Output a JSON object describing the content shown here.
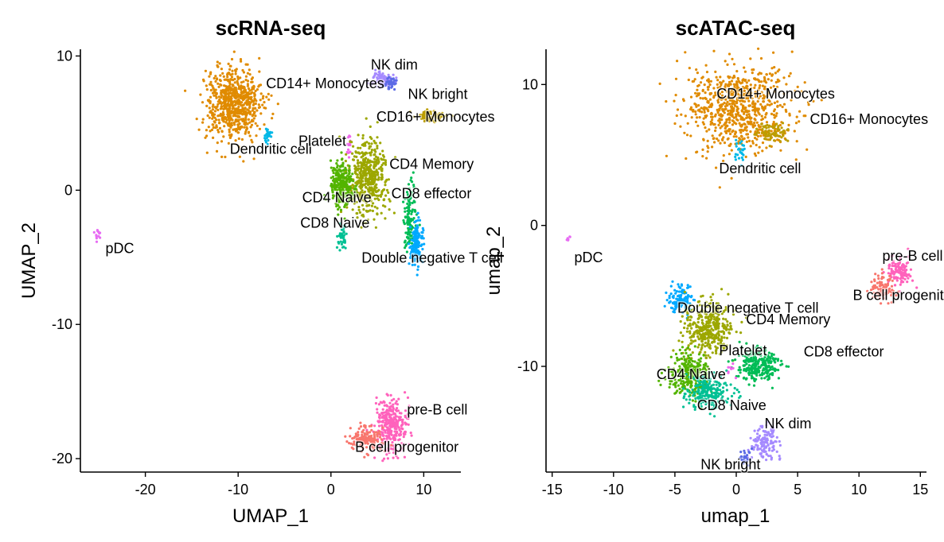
{
  "chart_data": [
    {
      "type": "scatter",
      "title": "scRNA-seq",
      "xlabel": "UMAP_1",
      "ylabel": "UMAP_2",
      "xlim": [
        -27,
        14
      ],
      "ylim": [
        -21,
        10.5
      ],
      "xticks": [
        -20,
        -10,
        0,
        10
      ],
      "yticks": [
        -20,
        -10,
        0,
        10
      ],
      "clusters": [
        {
          "name": "CD14+ Monocytes",
          "color": "#E08B00",
          "x": -10.5,
          "y": 6.5,
          "sx": 1.5,
          "sy": 1.3,
          "n": 700,
          "lx": -7,
          "ly": 7.6
        },
        {
          "name": "Dendritic cell",
          "color": "#00B8E7",
          "x": -6.8,
          "y": 4.0,
          "sx": 0.15,
          "sy": 0.35,
          "n": 25,
          "lx": -10.9,
          "ly": 2.7
        },
        {
          "name": "NK dim",
          "color": "#A58AFF",
          "x": 5.6,
          "y": 8.2,
          "sx": 0.6,
          "sy": 0.3,
          "n": 90,
          "lx": 4.3,
          "ly": 9.0
        },
        {
          "name": "NK bright",
          "color": "#5B6BE5",
          "x": 6.4,
          "y": 8.0,
          "sx": 0.3,
          "sy": 0.25,
          "n": 40,
          "lx": 8.3,
          "ly": 6.8
        },
        {
          "name": "CD16+ Monocytes",
          "color": "#BB9D00",
          "x": 10.8,
          "y": 5.5,
          "sx": 0.8,
          "sy": 0.25,
          "n": 70,
          "lx": 4.9,
          "ly": 5.1
        },
        {
          "name": "Platelet",
          "color": "#EF67EB",
          "x": 1.9,
          "y": 3.3,
          "sx": 0.1,
          "sy": 0.45,
          "n": 15,
          "lx": -3.5,
          "ly": 3.3
        },
        {
          "name": "CD4 Memory",
          "color": "#9CA700",
          "x": 4.0,
          "y": 1.0,
          "sx": 1.1,
          "sy": 1.3,
          "n": 480,
          "lx": 6.3,
          "ly": 1.6
        },
        {
          "name": "CD4 Naive",
          "color": "#53B400",
          "x": 1.1,
          "y": 0.4,
          "sx": 0.6,
          "sy": 0.8,
          "n": 260,
          "lx": -3.1,
          "ly": -0.9
        },
        {
          "name": "CD8 effector",
          "color": "#00BC56",
          "x": 8.5,
          "y": -2.0,
          "sx": 0.3,
          "sy": 1.0,
          "n": 120,
          "lx": 6.5,
          "ly": -0.6
        },
        {
          "name": "CD8 Naive",
          "color": "#00C094",
          "x": 1.2,
          "y": -3.5,
          "sx": 0.25,
          "sy": 0.4,
          "n": 40,
          "lx": -3.3,
          "ly": -2.8
        },
        {
          "name": "Double negative T cell",
          "color": "#00A9FF",
          "x": 9.2,
          "y": -4.0,
          "sx": 0.4,
          "sy": 0.8,
          "n": 140,
          "lx": 3.3,
          "ly": -5.4
        },
        {
          "name": "pDC",
          "color": "#E76BF3",
          "x": -25.1,
          "y": -3.4,
          "sx": 0.15,
          "sy": 0.25,
          "n": 12,
          "lx": -24.3,
          "ly": -4.7
        },
        {
          "name": "pre-B cell",
          "color": "#FF62BC",
          "x": 6.5,
          "y": -17.5,
          "sx": 0.9,
          "sy": 1.0,
          "n": 300,
          "lx": 8.2,
          "ly": -16.7
        },
        {
          "name": "B cell progenitor",
          "color": "#F8766D",
          "x": 3.8,
          "y": -18.5,
          "sx": 0.9,
          "sy": 0.5,
          "n": 150,
          "lx": 2.6,
          "ly": -19.5
        }
      ]
    },
    {
      "type": "scatter",
      "title": "scATAC-seq",
      "xlabel": "umap_1",
      "ylabel": "umap_2",
      "xlim": [
        -15.5,
        15.5
      ],
      "ylim": [
        -17.5,
        12.5
      ],
      "xticks": [
        -15,
        -10,
        -5,
        0,
        5,
        10,
        15
      ],
      "yticks": [
        -10,
        0,
        10
      ],
      "clusters": [
        {
          "name": "CD14+ Monocytes",
          "color": "#E08B00",
          "x": 0.2,
          "y": 8.3,
          "sx": 2.1,
          "sy": 1.5,
          "n": 750,
          "lx": -1.6,
          "ly": 9.0
        },
        {
          "name": "CD16+ Monocytes",
          "color": "#BB9D00",
          "x": 2.9,
          "y": 6.6,
          "sx": 0.7,
          "sy": 0.35,
          "n": 70,
          "lx": 6.0,
          "ly": 7.2
        },
        {
          "name": "Dendritic cell",
          "color": "#00B8E7",
          "x": 0.3,
          "y": 5.2,
          "sx": 0.2,
          "sy": 0.4,
          "n": 25,
          "lx": -1.4,
          "ly": 3.7
        },
        {
          "name": "pDC",
          "color": "#E76BF3",
          "x": -13.7,
          "y": -0.9,
          "sx": 0.1,
          "sy": 0.15,
          "n": 6,
          "lx": -13.2,
          "ly": -2.6
        },
        {
          "name": "pre-B cell",
          "color": "#FF62BC",
          "x": 13.2,
          "y": -3.2,
          "sx": 0.5,
          "sy": 0.5,
          "n": 120,
          "lx": 11.9,
          "ly": -2.5
        },
        {
          "name": "B cell progenitor",
          "color": "#F8766D",
          "x": 12.0,
          "y": -4.5,
          "sx": 0.5,
          "sy": 0.5,
          "n": 90,
          "lx": 9.5,
          "ly": -5.3
        },
        {
          "name": "Double negative T cell",
          "color": "#00A9FF",
          "x": -4.6,
          "y": -5.3,
          "sx": 0.5,
          "sy": 0.5,
          "n": 120,
          "lx": -4.8,
          "ly": -6.2
        },
        {
          "name": "CD4 Memory",
          "color": "#9CA700",
          "x": -2.3,
          "y": -7.4,
          "sx": 1.0,
          "sy": 1.0,
          "n": 380,
          "lx": 0.8,
          "ly": -7.0
        },
        {
          "name": "CD8 effector",
          "color": "#00BC56",
          "x": 1.8,
          "y": -10.0,
          "sx": 0.9,
          "sy": 0.6,
          "n": 260,
          "lx": 5.5,
          "ly": -9.3
        },
        {
          "name": "CD4 Naive",
          "color": "#53B400",
          "x": -3.9,
          "y": -10.6,
          "sx": 0.8,
          "sy": 0.8,
          "n": 280,
          "lx": -6.5,
          "ly": -10.9
        },
        {
          "name": "CD8 Naive",
          "color": "#00C094",
          "x": -2.3,
          "y": -11.8,
          "sx": 0.9,
          "sy": 0.6,
          "n": 220,
          "lx": -3.2,
          "ly": -13.1
        },
        {
          "name": "Platelet",
          "color": "#EF67EB",
          "x": -0.5,
          "y": -10.3,
          "sx": 0.2,
          "sy": 0.3,
          "n": 8,
          "lx": -1.4,
          "ly": -9.2
        },
        {
          "name": "NK dim",
          "color": "#A58AFF",
          "x": 2.3,
          "y": -15.3,
          "sx": 0.6,
          "sy": 0.7,
          "n": 130,
          "lx": 2.3,
          "ly": -14.4
        },
        {
          "name": "NK bright",
          "color": "#5B6BE5",
          "x": 0.7,
          "y": -16.4,
          "sx": 0.3,
          "sy": 0.25,
          "n": 25,
          "lx": -2.9,
          "ly": -17.3
        }
      ]
    }
  ]
}
